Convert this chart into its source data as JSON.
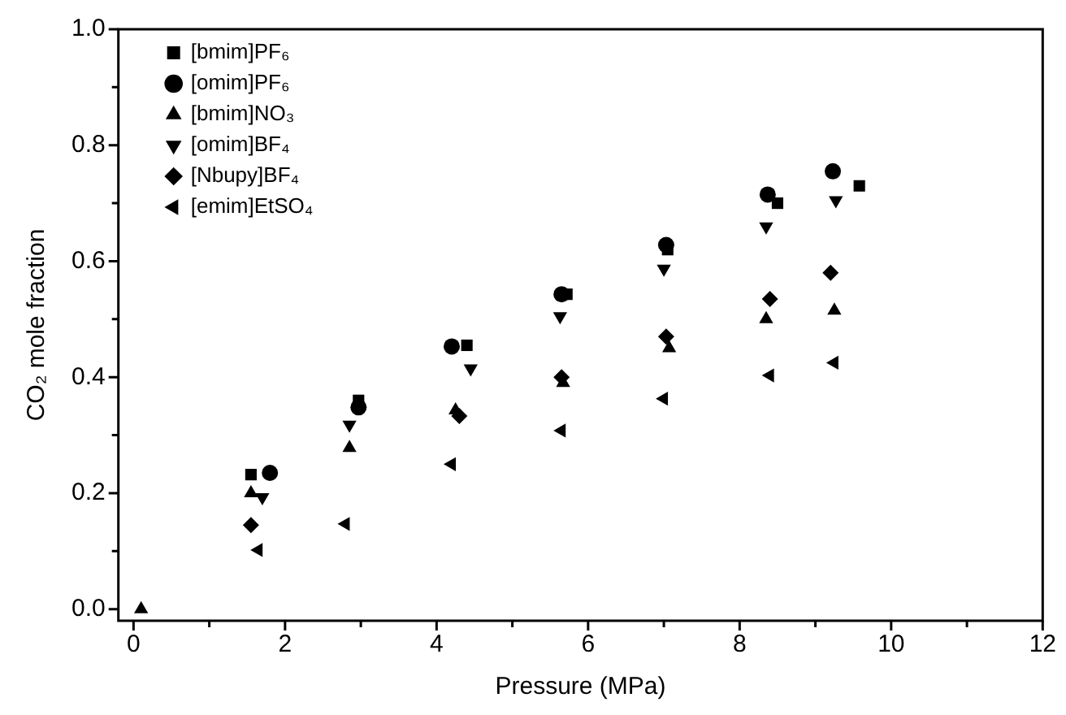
{
  "chart_data": {
    "type": "scatter",
    "xlabel": "Pressure (MPa)",
    "ylabel": "CO₂ mole fraction",
    "xlim": [
      -0.2,
      12
    ],
    "xticks": [
      0,
      2,
      4,
      6,
      8,
      10,
      12
    ],
    "ylim": [
      -0.02,
      1.0
    ],
    "yticks": [
      {
        "value": 0,
        "label": "0.0"
      },
      {
        "value": 0.2,
        "label": "0.2"
      },
      {
        "value": 0.4,
        "label": "0.4"
      },
      {
        "value": 0.6,
        "label": "0.6"
      },
      {
        "value": 0.8,
        "label": "0.8"
      },
      {
        "value": 1.0,
        "label": "1.0"
      }
    ],
    "grid": false,
    "legend": "top left",
    "series": [
      {
        "name": "[bmim]PF₆",
        "color": "#000000",
        "marker": "square",
        "x": [
          1.55,
          2.97,
          4.4,
          5.72,
          7.05,
          8.5,
          9.58
        ],
        "values": [
          0.232,
          0.36,
          0.455,
          0.543,
          0.62,
          0.7,
          0.73
        ]
      },
      {
        "name": "[omim]PF₆",
        "color": "#000000",
        "marker": "circle",
        "x": [
          1.8,
          2.97,
          4.2,
          5.65,
          7.03,
          8.37,
          9.23
        ],
        "values": [
          0.235,
          0.348,
          0.453,
          0.543,
          0.628,
          0.715,
          0.755
        ]
      },
      {
        "name": "[bmim]NO₃",
        "color": "#000000",
        "marker": "triangle",
        "x": [
          0.1,
          1.55,
          2.85,
          4.25,
          5.67,
          7.07,
          8.35,
          9.25
        ],
        "values": [
          0,
          0.2,
          0.278,
          0.343,
          0.39,
          0.45,
          0.5,
          0.515
        ]
      },
      {
        "name": "[omim]BF₄",
        "color": "#000000",
        "marker": "triangle_down",
        "x": [
          1.7,
          2.85,
          4.45,
          5.63,
          7.0,
          8.35,
          9.27
        ],
        "values": [
          0.193,
          0.318,
          0.415,
          0.505,
          0.587,
          0.66,
          0.705
        ]
      },
      {
        "name": "[Nbupy]BF₄",
        "color": "#000000",
        "marker": "diamond",
        "x": [
          1.55,
          4.3,
          5.65,
          7.03,
          8.4,
          9.2
        ],
        "values": [
          0.145,
          0.333,
          0.4,
          0.47,
          0.535,
          0.58
        ]
      },
      {
        "name": "[emim]EtSO₄",
        "color": "#000000",
        "marker": "triangle_left",
        "x": [
          1.65,
          2.8,
          4.2,
          5.65,
          7.0,
          8.4,
          9.25
        ],
        "values": [
          0.102,
          0.147,
          0.25,
          0.308,
          0.363,
          0.403,
          0.425
        ]
      }
    ]
  }
}
